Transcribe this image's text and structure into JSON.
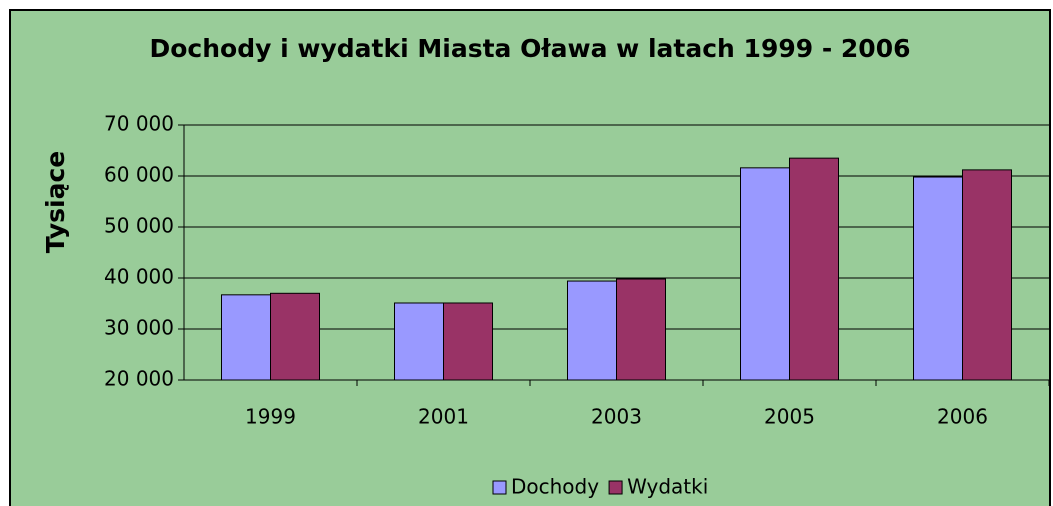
{
  "chart_data": {
    "type": "bar",
    "title": "Dochody i wydatki Miasta Oława w latach 1999 - 2006",
    "y_label": "Tysiące",
    "categories": [
      "1999",
      "2001",
      "2003",
      "2005",
      "2006"
    ],
    "series": [
      {
        "name": "Dochody",
        "color": "#9999ff",
        "values": [
          36700,
          35100,
          39400,
          61600,
          59800
        ]
      },
      {
        "name": "Wydatki",
        "color": "#993366",
        "values": [
          37000,
          35100,
          39800,
          63500,
          61200
        ]
      }
    ],
    "ylim": [
      20000,
      70000
    ],
    "yticks": [
      {
        "value": 20000,
        "label": "20 000"
      },
      {
        "value": 30000,
        "label": "30 000"
      },
      {
        "value": 40000,
        "label": "40 000"
      },
      {
        "value": 50000,
        "label": "50 000"
      },
      {
        "value": 60000,
        "label": "60 000"
      },
      {
        "value": 70000,
        "label": "70 000"
      }
    ],
    "grid": true,
    "legend": "bottom"
  }
}
